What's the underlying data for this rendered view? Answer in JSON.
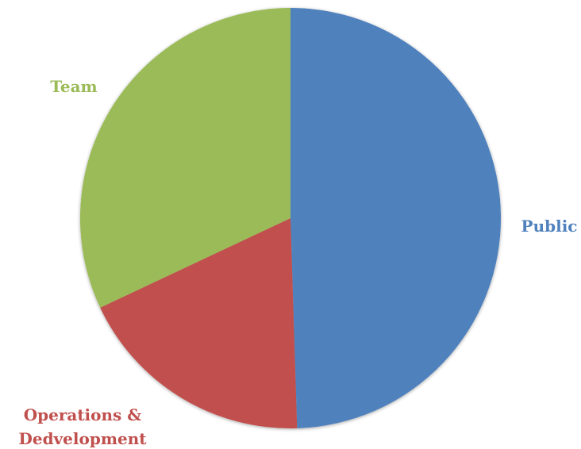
{
  "chart_data": {
    "type": "pie",
    "title": "",
    "start_angle_deg": 0,
    "direction": "clockwise",
    "slices": [
      {
        "label": "Public",
        "value": 49.5,
        "color": "#4F81BD"
      },
      {
        "label": "Operations & Dedvelopment",
        "label_lines": [
          "Operations &",
          "Dedvelopment"
        ],
        "value": 18.5,
        "color": "#C0504D"
      },
      {
        "label": "Team",
        "value": 32.0,
        "color": "#9BBB59"
      }
    ],
    "legend": "none"
  }
}
